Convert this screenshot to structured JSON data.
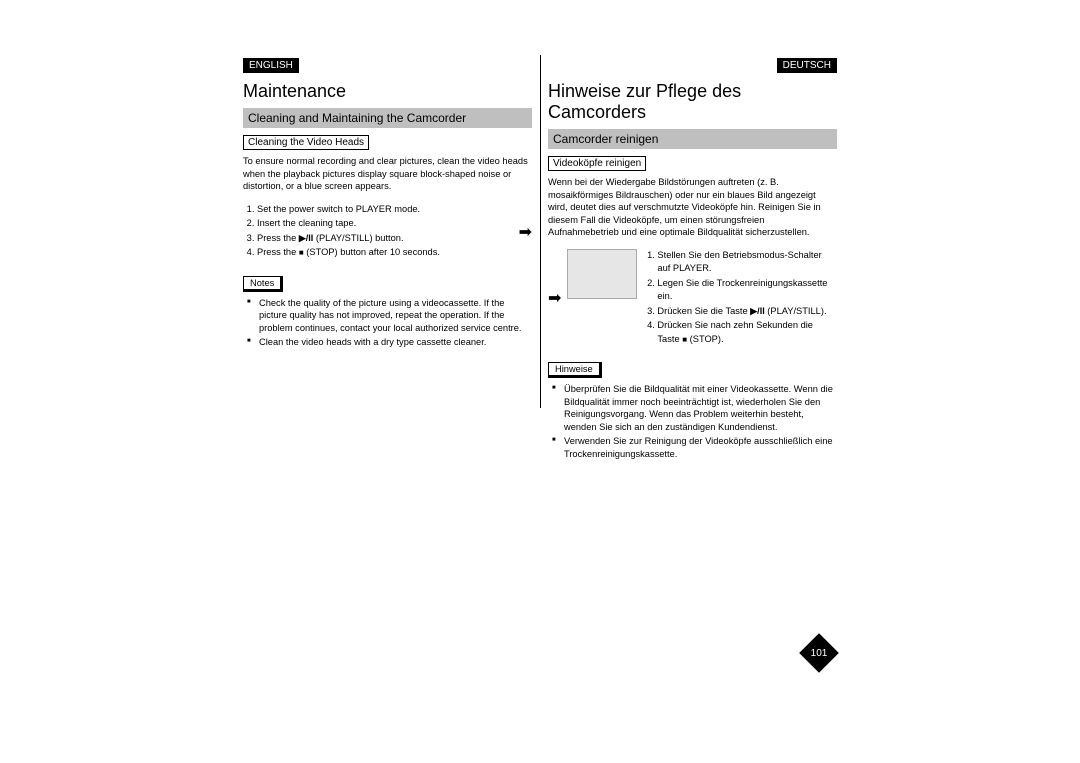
{
  "left": {
    "lang": "ENGLISH",
    "title": "Maintenance",
    "section": "Cleaning and Maintaining the Camcorder",
    "sub": "Cleaning the Video Heads",
    "intro": "To ensure normal recording and clear pictures, clean the video heads when the playback pictures display square block-shaped noise or distortion, or a blue screen appears.",
    "step1": "Set the power switch to PLAYER mode.",
    "step2": "Insert the cleaning tape.",
    "step3a": "Press the ",
    "step3b": " (PLAY/STILL) button.",
    "step4a": "Press the ",
    "step4b": " (STOP) button after 10 seconds.",
    "notesLabel": "Notes",
    "note1": "Check the quality of the picture using a videocassette. If the picture quality has not improved, repeat the operation. If the problem continues, contact your local authorized service centre.",
    "note2": "Clean the video heads with a dry type cassette cleaner."
  },
  "right": {
    "lang": "DEUTSCH",
    "title": "Hinweise zur Pflege des Camcorders",
    "section": "Camcorder reinigen",
    "sub": "Videoköpfe reinigen",
    "intro": "Wenn bei der Wiedergabe Bildstörungen auftreten (z. B. mosaikförmiges Bildrauschen) oder nur ein blaues Bild angezeigt wird, deutet dies auf verschmutzte Videoköpfe hin. Reinigen Sie in diesem Fall die Videoköpfe, um einen störungsfreien Aufnahmebetrieb und eine optimale Bildqualität sicherzustellen.",
    "step1": "Stellen Sie den Betriebsmodus-Schalter auf PLAYER.",
    "step2": "Legen Sie die Trockenreinigungskassette ein.",
    "step3a": "Drücken Sie die Taste ",
    "step3b": " (PLAY/STILL).",
    "step4a": "Drücken Sie nach zehn Sekunden die Taste ",
    "step4b": " (STOP).",
    "notesLabel": "Hinweise",
    "note1": "Überprüfen Sie die Bildqualität mit einer Videokassette. Wenn die Bildqualität immer noch beeinträchtigt ist, wiederholen Sie den Reinigungsvorgang. Wenn das Problem weiterhin besteht, wenden Sie sich an den zuständigen Kundendienst.",
    "note2": "Verwenden Sie zur Reinigung der Videoköpfe ausschließlich eine Trockenreinigungskassette."
  },
  "pageNumber": "101"
}
